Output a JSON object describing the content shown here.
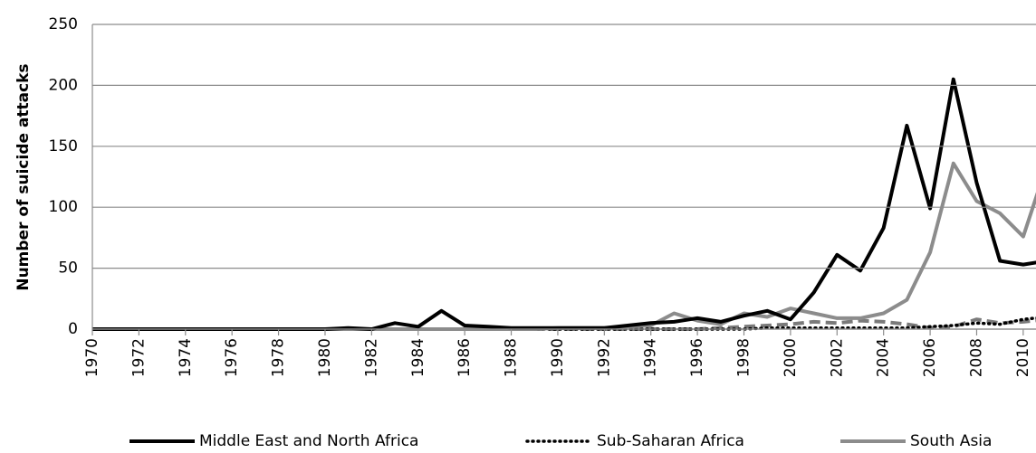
{
  "chart_data": {
    "type": "line",
    "y_label": "Number of suicide attacks",
    "x": [
      1970,
      1971,
      1972,
      1973,
      1974,
      1975,
      1976,
      1977,
      1978,
      1979,
      1980,
      1981,
      1982,
      1983,
      1984,
      1985,
      1986,
      1987,
      1988,
      1989,
      1990,
      1991,
      1992,
      1993,
      1994,
      1995,
      1996,
      1997,
      1998,
      1999,
      2000,
      2001,
      2002,
      2003,
      2004,
      2005,
      2006,
      2007,
      2008,
      2009,
      2010,
      2011
    ],
    "series": [
      {
        "name": "Middle East and North Africa",
        "color": "#000000",
        "style": "solid",
        "values": [
          0,
          0,
          0,
          0,
          0,
          0,
          0,
          0,
          0,
          0,
          0,
          1,
          0,
          5,
          2,
          15,
          3,
          2,
          1,
          1,
          1,
          1,
          1,
          3,
          5,
          6,
          9,
          6,
          11,
          15,
          8,
          30,
          61,
          48,
          83,
          167,
          99,
          205,
          120,
          56,
          53,
          56
        ]
      },
      {
        "name": "Sub-Saharan Africa",
        "color": "#000000",
        "style": "dotted",
        "values": [
          0,
          0,
          0,
          0,
          0,
          0,
          0,
          0,
          0,
          0,
          0,
          0,
          0,
          0,
          0,
          0,
          0,
          0,
          0,
          0,
          0,
          0,
          0,
          0,
          0,
          0,
          0,
          0,
          0,
          1,
          1,
          1,
          1,
          1,
          1,
          1,
          2,
          3,
          5,
          4,
          8,
          10
        ]
      },
      {
        "name": "South Asia",
        "color": "#8c8c8c",
        "style": "solid",
        "values": [
          0,
          0,
          0,
          0,
          0,
          0,
          0,
          0,
          0,
          0,
          0,
          0,
          0,
          0,
          0,
          0,
          0,
          0,
          0,
          0,
          1,
          1,
          1,
          2,
          3,
          13,
          7,
          4,
          13,
          10,
          17,
          13,
          9,
          9,
          13,
          24,
          63,
          136,
          105,
          95,
          76,
          134
        ]
      },
      {
        "color": "#7a7a7a",
        "style": "dashed",
        "values": [
          0,
          0,
          0,
          0,
          0,
          0,
          0,
          0,
          0,
          0,
          0,
          0,
          0,
          0,
          0,
          0,
          0,
          0,
          0,
          0,
          0,
          0,
          0,
          0,
          0,
          0,
          0,
          1,
          2,
          3,
          4,
          6,
          5,
          7,
          6,
          4,
          1,
          2,
          8,
          5,
          6,
          8
        ]
      }
    ],
    "xlim": [
      1970,
      2010.55
    ],
    "xticks": [
      1970,
      1972,
      1974,
      1976,
      1978,
      1980,
      1982,
      1984,
      1986,
      1988,
      1990,
      1992,
      1994,
      1996,
      1998,
      2000,
      2002,
      2004,
      2006,
      2008,
      2010
    ],
    "ylim": [
      0,
      250
    ],
    "yticks": [
      0,
      50,
      100,
      150,
      200,
      250
    ],
    "grid": true
  }
}
